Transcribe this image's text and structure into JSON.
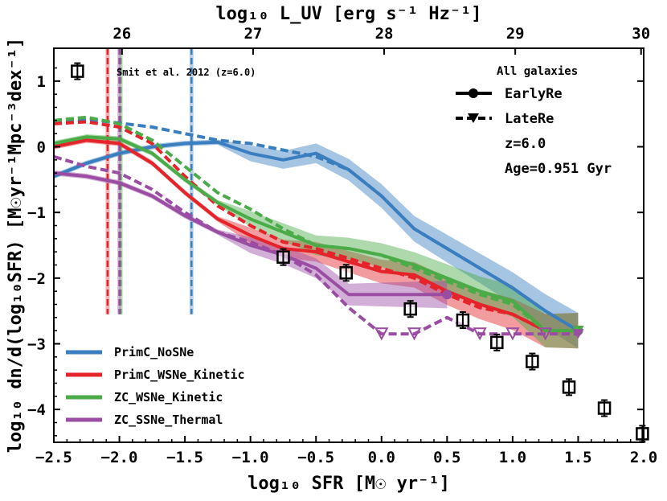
{
  "chart_data": {
    "type": "line",
    "xlabel": "log₁₀ SFR [M☉ yr⁻¹]",
    "ylabel": "log₁₀ dn/d(log₁₀SFR) [M☉yr⁻¹Mpc⁻³dex⁻¹]",
    "top_xlabel": "log₁₀ L_UV [erg s⁻¹ Hz⁻¹]",
    "xlim": [
      -2.5,
      2.0
    ],
    "ylim": [
      -4.5,
      1.5
    ],
    "xticks": [
      "−2.5",
      "−2.0",
      "−1.5",
      "−1.0",
      "−0.5",
      "0.0",
      "0.5",
      "1.0",
      "1.5",
      "2.0"
    ],
    "yticks": [
      "1",
      "0",
      "−1",
      "−2",
      "−3",
      "−4"
    ],
    "top_ticks": [
      "26",
      "27",
      "28",
      "29",
      "30"
    ],
    "grid": false,
    "legend_position": "bottom-left",
    "colors": {
      "PrimC_NoSNe": "#3a7ebf",
      "PrimC_WSNe_Kinetic": "#e4232a",
      "ZC_WSNe_Kinetic": "#4aab48",
      "ZC_SSNe_Thermal": "#9a4da3"
    },
    "series": [
      {
        "name": "PrimC_NoSNe",
        "style": "EarlyRe",
        "x": [
          -2.5,
          -2.25,
          -2.0,
          -1.75,
          -1.5,
          -1.25,
          -1.0,
          -0.75,
          -0.5,
          -0.25,
          0.0,
          0.25,
          0.5,
          0.75,
          1.0,
          1.25,
          1.5
        ],
        "y": [
          -0.45,
          -0.25,
          -0.1,
          0.0,
          0.05,
          0.07,
          -0.1,
          -0.2,
          -0.1,
          -0.35,
          -0.75,
          -1.25,
          -1.55,
          -1.85,
          -2.15,
          -2.5,
          -2.8
        ]
      },
      {
        "name": "PrimC_NoSNe",
        "style": "LateRe",
        "x": [
          -2.5,
          -2.25,
          -2.0,
          -1.75,
          -1.5,
          -1.25,
          -1.0,
          -0.75,
          -0.5,
          -0.25,
          0.0,
          0.25,
          0.5,
          0.75,
          1.0,
          1.25,
          1.5
        ],
        "y": [
          0.4,
          0.42,
          0.36,
          0.3,
          0.2,
          0.1,
          0.05,
          -0.05,
          -0.15,
          -0.35,
          -0.75,
          -1.25,
          -1.55,
          -1.85,
          -2.15,
          -2.5,
          -2.8
        ]
      },
      {
        "name": "PrimC_WSNe_Kinetic",
        "style": "EarlyRe",
        "x": [
          -2.5,
          -2.25,
          -2.0,
          -1.75,
          -1.5,
          -1.25,
          -1.0,
          -0.75,
          -0.5,
          -0.25,
          0.0,
          0.25,
          0.5,
          0.75,
          1.0,
          1.25,
          1.5
        ],
        "y": [
          0.0,
          0.1,
          0.05,
          -0.25,
          -0.7,
          -1.1,
          -1.35,
          -1.55,
          -1.6,
          -1.75,
          -1.9,
          -1.95,
          -2.2,
          -2.4,
          -2.55,
          -2.8,
          -2.8
        ]
      },
      {
        "name": "PrimC_WSNe_Kinetic",
        "style": "LateRe",
        "x": [
          -2.5,
          -2.25,
          -2.0,
          -1.75,
          -1.5,
          -1.25,
          -1.0,
          -0.75,
          -0.5,
          -0.25,
          0.0,
          0.25,
          0.5,
          0.75,
          1.0,
          1.25,
          1.5
        ],
        "y": [
          0.35,
          0.38,
          0.3,
          0.05,
          -0.45,
          -0.9,
          -1.2,
          -1.45,
          -1.55,
          -1.7,
          -1.85,
          -2.0,
          -2.25,
          -2.45,
          -2.55,
          -2.8,
          -2.8
        ]
      },
      {
        "name": "ZC_WSNe_Kinetic",
        "style": "EarlyRe",
        "x": [
          -2.5,
          -2.25,
          -2.0,
          -1.75,
          -1.5,
          -1.25,
          -1.0,
          -0.75,
          -0.5,
          -0.25,
          0.0,
          0.25,
          0.5,
          0.75,
          1.0,
          1.25,
          1.5
        ],
        "y": [
          0.05,
          0.15,
          0.12,
          -0.1,
          -0.5,
          -0.85,
          -1.1,
          -1.3,
          -1.5,
          -1.55,
          -1.65,
          -1.8,
          -2.0,
          -2.2,
          -2.35,
          -2.8,
          -2.8
        ]
      },
      {
        "name": "ZC_WSNe_Kinetic",
        "style": "LateRe",
        "x": [
          -2.5,
          -2.25,
          -2.0,
          -1.75,
          -1.5,
          -1.25,
          -1.0,
          -0.75,
          -0.5,
          -0.25,
          0.0,
          0.25,
          0.5,
          0.75,
          1.0,
          1.25,
          1.5
        ],
        "y": [
          0.4,
          0.45,
          0.35,
          0.1,
          -0.3,
          -0.7,
          -0.95,
          -1.25,
          -1.5,
          -1.55,
          -1.65,
          -1.85,
          -2.05,
          -2.25,
          -2.4,
          -2.8,
          -2.8
        ]
      },
      {
        "name": "ZC_SSNe_Thermal",
        "style": "EarlyRe",
        "x": [
          -2.5,
          -2.25,
          -2.0,
          -1.75,
          -1.5,
          -1.25,
          -1.0,
          -0.75,
          -0.5,
          -0.25,
          0.0,
          0.25,
          0.5
        ],
        "y": [
          -0.4,
          -0.45,
          -0.55,
          -0.75,
          -1.05,
          -1.3,
          -1.5,
          -1.65,
          -1.85,
          -2.25,
          -2.25,
          -2.25,
          -2.25
        ]
      },
      {
        "name": "ZC_SSNe_Thermal",
        "style": "LateRe",
        "x": [
          -2.5,
          -2.25,
          -2.0,
          -1.75,
          -1.5,
          -1.25,
          -1.0,
          -0.75,
          -0.5,
          -0.25,
          0.0,
          0.25,
          0.5,
          0.75,
          1.0,
          1.25,
          1.5
        ],
        "y": [
          -0.15,
          -0.3,
          -0.4,
          -0.65,
          -1.0,
          -1.3,
          -1.45,
          -1.65,
          -1.95,
          -2.45,
          -2.85,
          -2.85,
          -2.6,
          -2.85,
          -2.85,
          -2.85,
          -2.85
        ]
      }
    ],
    "reionization_lines": [
      {
        "name": "PrimC_WSNe_Kinetic",
        "x": -2.09
      },
      {
        "name": "ZC_WSNe_Kinetic",
        "x": -1.99
      },
      {
        "name": "ZC_SSNe_Thermal",
        "x": -2.0
      },
      {
        "name": "PrimC_NoSNe",
        "x": -1.45
      }
    ],
    "observations": {
      "label": "Smit et al. 2012 (z=6.0)",
      "x": [
        -2.32,
        -0.75,
        -0.27,
        0.22,
        0.62,
        0.88,
        1.15,
        1.43,
        1.7,
        1.99
      ],
      "y": [
        1.15,
        -1.68,
        -1.92,
        -2.47,
        -2.64,
        -2.98,
        -3.27,
        -3.66,
        -3.98,
        -4.37
      ]
    },
    "legend": [
      "PrimC_NoSNe",
      "PrimC_WSNe_Kinetic",
      "ZC_WSNe_Kinetic",
      "ZC_SSNe_Thermal"
    ],
    "info": {
      "title": "All galaxies",
      "early": "EarlyRe",
      "late": "LateRe",
      "redshift": "z=6.0",
      "age": "Age=0.951 Gyr"
    }
  }
}
